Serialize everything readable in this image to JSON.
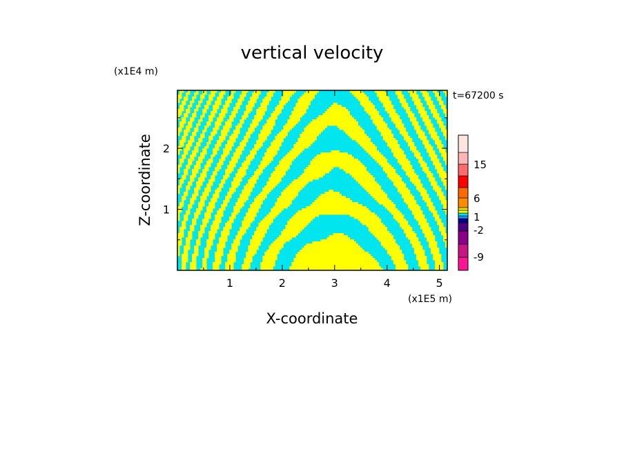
{
  "chart_data": {
    "type": "heatmap",
    "title": "vertical velocity",
    "xlabel": "X-coordinate",
    "ylabel": "Z-coordinate",
    "x_scale_label": "(x1E5 m)",
    "y_scale_label": "(x1E4 m)",
    "time_label": "t=67200 s",
    "xlim": [
      0,
      5.15
    ],
    "ylim": [
      0,
      2.95
    ],
    "x_ticks": [
      "1",
      "2",
      "3",
      "4",
      "5"
    ],
    "y_ticks": [
      "1",
      "2"
    ],
    "legend": {
      "levels": [
        "15",
        "6",
        "1",
        "-2",
        "-9"
      ],
      "colors": [
        "#ff1493",
        "#c71585",
        "#8b008b",
        "#4b0082",
        "#00008b",
        "#1e90ff",
        "#00e5ee",
        "#ffff00",
        "#e8e800",
        "#ff8c00",
        "#ff6a00",
        "#ff0000",
        "#ff6a6a",
        "#ffb6b6",
        "#ffe4e1"
      ]
    },
    "dominant_colors": {
      "positive": "#ffff00",
      "negative": "#00e5ee"
    }
  }
}
